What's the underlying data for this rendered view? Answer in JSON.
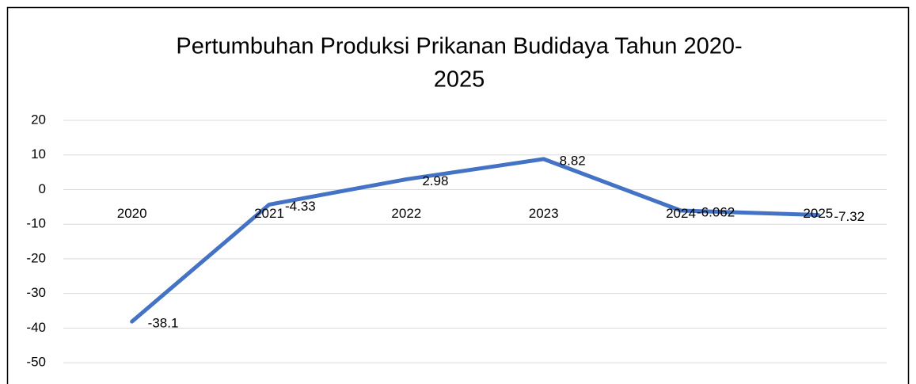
{
  "chart_data": {
    "type": "line",
    "title": [
      "Pertumbuhan Produksi Prikanan Budidaya Tahun 2020-",
      "2025"
    ],
    "categories": [
      "2020",
      "2021",
      "2022",
      "2023",
      "2024",
      "2025"
    ],
    "values": [
      -38.1,
      -4.33,
      2.98,
      8.82,
      -6.062,
      -7.32
    ],
    "color": "#4472c4",
    "ylim": [
      -55,
      20
    ],
    "yticks": [
      -50,
      -40,
      -30,
      -20,
      -10,
      0,
      10,
      20
    ],
    "grid": true
  }
}
